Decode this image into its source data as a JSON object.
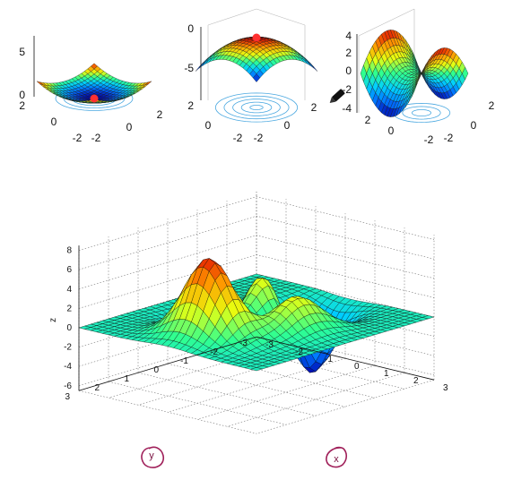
{
  "chart_data": [
    {
      "type": "surface",
      "surface": "bowl (minimum)",
      "z_ticks": [
        "0",
        "5"
      ],
      "x_ticks": [
        "-2",
        "0",
        "2"
      ],
      "y_ticks": [
        "-2",
        "0",
        "2"
      ],
      "marker": "red point at minimum",
      "contours": true
    },
    {
      "type": "surface",
      "surface": "dome (maximum)",
      "z_ticks": [
        "0",
        "-5"
      ],
      "x_ticks": [
        "-2",
        "0",
        "2"
      ],
      "y_ticks": [
        "-2",
        "0",
        "2"
      ],
      "marker": "red point at maximum",
      "contours": true
    },
    {
      "type": "surface",
      "surface": "saddle",
      "z_ticks": [
        "4",
        "2",
        "0",
        "-2",
        "-4"
      ],
      "x_ticks": [
        "-2",
        "0",
        "2"
      ],
      "y_ticks": [
        "-2",
        "0",
        "2"
      ],
      "contours": true
    },
    {
      "type": "surface",
      "surface": "peaks",
      "zlabel": "z",
      "xlabel": "x",
      "ylabel": "y",
      "z_ticks": [
        "8",
        "6",
        "4",
        "2",
        "0",
        "-2",
        "-4",
        "-6"
      ],
      "x_ticks": [
        "-3",
        "-2",
        "-1",
        "0",
        "1",
        "2",
        "3"
      ],
      "y_ticks": [
        "3",
        "2",
        "1",
        "0",
        "-1",
        "-2",
        "-3"
      ],
      "zlim": [
        -6.5,
        8.5
      ],
      "xlim": [
        -3,
        3
      ],
      "ylim": [
        -3,
        3
      ],
      "grid": true
    }
  ],
  "colors": {
    "colormap": [
      "#0000a8",
      "#0070ff",
      "#00d0ff",
      "#30ff90",
      "#e8ff10",
      "#ff9a00",
      "#e00000"
    ],
    "contour": "#4aa8e0",
    "marker": "#ff3030",
    "annotation": "#a0205a"
  },
  "icons": {
    "cursor": "pencil-cursor-icon"
  }
}
